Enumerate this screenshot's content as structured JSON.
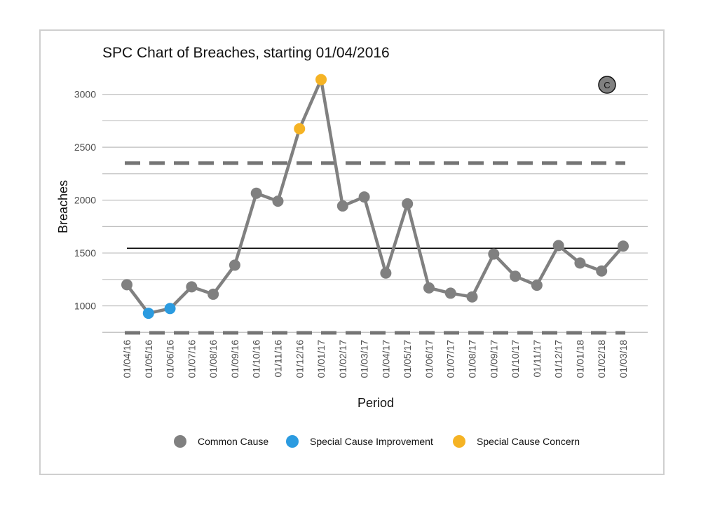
{
  "chart_data": {
    "type": "line",
    "title": "SPC Chart of Breaches, starting 01/04/2016",
    "xlabel": "Period",
    "ylabel": "Breaches",
    "ylim": [
      745,
      3230
    ],
    "yticks": [
      1000,
      1500,
      2000,
      2500,
      3000
    ],
    "grid": true,
    "legend_position": "bottom",
    "categories": [
      "01/04/16",
      "01/05/16",
      "01/06/16",
      "01/07/16",
      "01/08/16",
      "01/09/16",
      "01/10/16",
      "01/11/16",
      "01/12/16",
      "01/01/17",
      "01/02/17",
      "01/03/17",
      "01/04/17",
      "01/05/17",
      "01/06/17",
      "01/07/17",
      "01/08/17",
      "01/09/17",
      "01/10/17",
      "01/11/17",
      "01/12/17",
      "01/01/18",
      "01/02/18",
      "01/03/18"
    ],
    "series": [
      {
        "values": [
          1200,
          930,
          975,
          1180,
          1110,
          1385,
          2065,
          1990,
          2675,
          3140,
          1945,
          2030,
          1310,
          1965,
          1170,
          1120,
          1085,
          1490,
          1280,
          1195,
          1570,
          1405,
          1330,
          1565
        ],
        "point_classes": [
          "common",
          "improvement",
          "improvement",
          "common",
          "common",
          "common",
          "common",
          "common",
          "concern",
          "concern",
          "common",
          "common",
          "common",
          "common",
          "common",
          "common",
          "common",
          "common",
          "common",
          "common",
          "common",
          "common",
          "common",
          "common"
        ]
      }
    ],
    "mean": 1545,
    "upper_control_limit": 2350,
    "lower_control_limit": 745,
    "badge": "C",
    "legend": [
      {
        "key": "common",
        "label": "Common Cause",
        "color": "#808080"
      },
      {
        "key": "improvement",
        "label": "Special Cause Improvement",
        "color": "#2b9be0"
      },
      {
        "key": "concern",
        "label": "Special Cause Concern",
        "color": "#f5b324"
      }
    ],
    "colors": {
      "line": "#808080",
      "mean": "#000000",
      "limits": "#757575",
      "grid": "#bdbdbd"
    }
  }
}
